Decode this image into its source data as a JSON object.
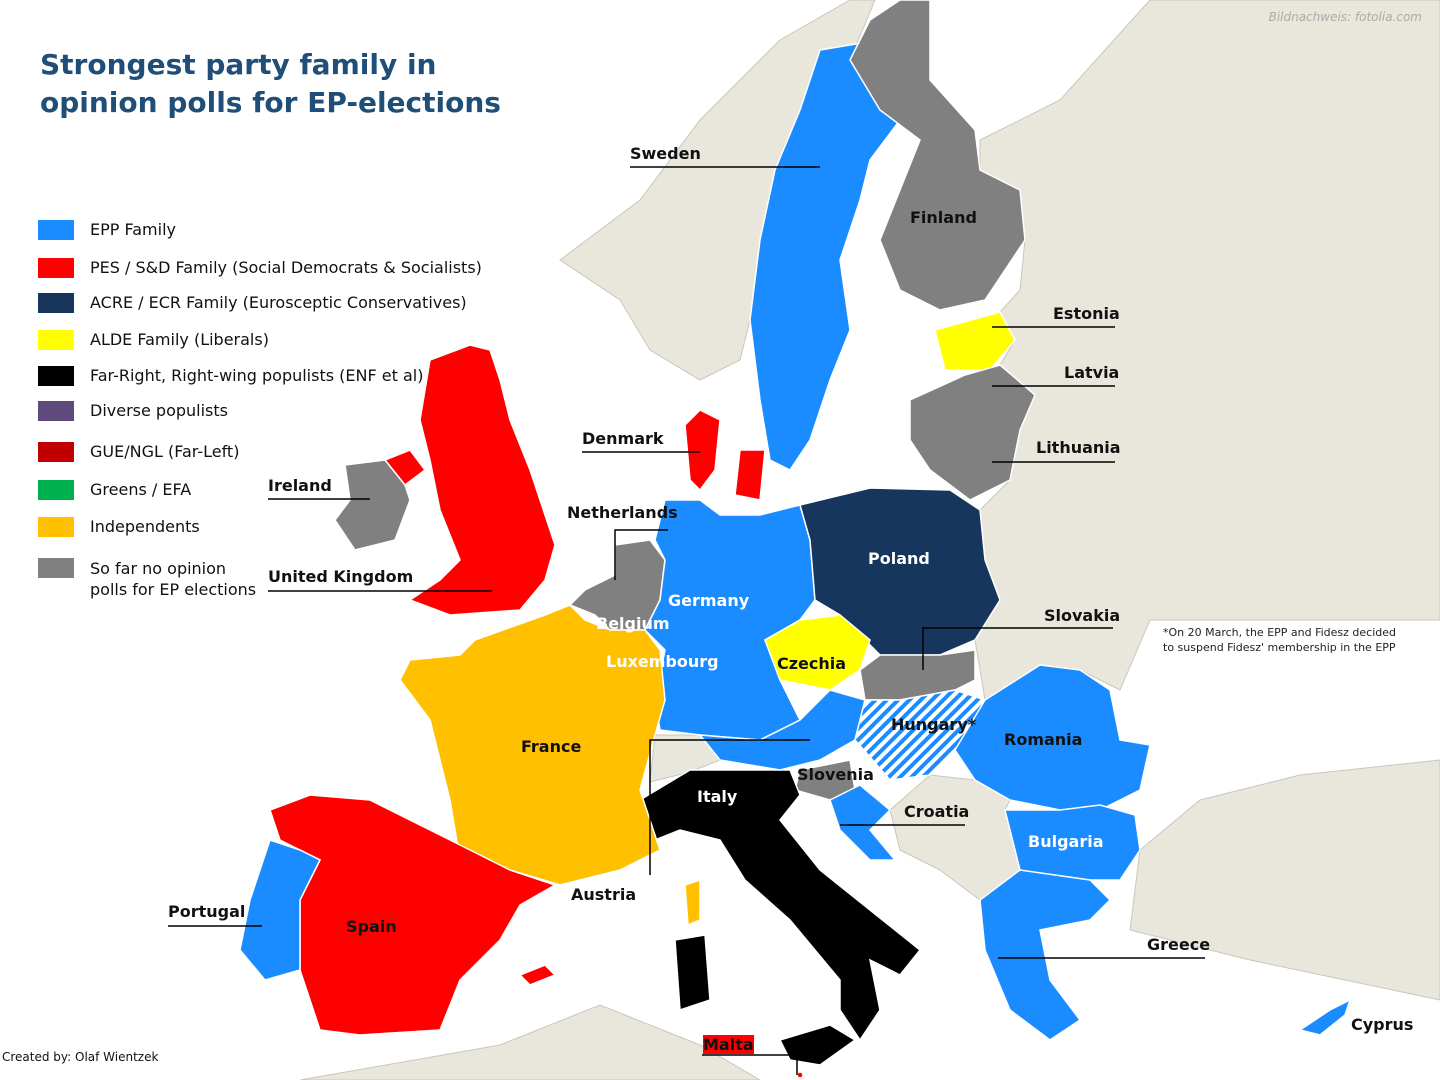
{
  "title_line1": "Strongest party family in",
  "title_line2": "opinion polls for EP-elections",
  "credit": "Bildnachweis: fotolia.com",
  "created_by": "Created by: Olaf Wientzek",
  "footnote_line1": "*On 20  March, the EPP and Fidesz decided",
  "footnote_line2": "to suspend Fidesz' membership in the EPP",
  "colors": {
    "epp": "#1a8cff",
    "pes": "#ff0000",
    "ecr": "#17365d",
    "alde": "#ffff00",
    "far_right": "#000000",
    "populists": "#604a7b",
    "gue": "#c00000",
    "greens": "#00b050",
    "independents": "#ffc000",
    "no_polls": "#808080",
    "non_eu": "#e9e7dc",
    "sea": "#ffffff"
  },
  "legend": [
    {
      "label": "EPP Family",
      "color": "#1a8cff"
    },
    {
      "label": "PES / S&D Family (Social Democrats & Socialists)",
      "color": "#ff0000"
    },
    {
      "label": "ACRE / ECR Family (Eurosceptic Conservatives)",
      "color": "#17365d"
    },
    {
      "label": "ALDE Family (Liberals)",
      "color": "#ffff00"
    },
    {
      "label": "Far-Right, Right-wing populists (ENF et al)",
      "color": "#000000"
    },
    {
      "label": "Diverse populists",
      "color": "#604a7b"
    },
    {
      "label": "GUE/NGL (Far-Left)",
      "color": "#c00000"
    },
    {
      "label": "Greens / EFA",
      "color": "#00b050"
    },
    {
      "label": "Independents",
      "color": "#ffc000"
    },
    {
      "label": "So far no opinion polls for EP elections",
      "color": "#808080"
    }
  ],
  "countries": {
    "sweden": "Sweden",
    "finland": "Finland",
    "estonia": "Estonia",
    "latvia": "Latvia",
    "lithuania": "Lithuania",
    "denmark": "Denmark",
    "ireland": "Ireland",
    "uk": "United Kingdom",
    "netherlands": "Netherlands",
    "belgium": "Belgium",
    "luxembourg": "Luxembourg",
    "germany": "Germany",
    "poland": "Poland",
    "czechia": "Czechia",
    "slovakia": "Slovakia",
    "hungary": "Hungary*",
    "romania": "Romania",
    "austria": "Austria",
    "slovenia": "Slovenia",
    "croatia": "Croatia",
    "bulgaria": "Bulgaria",
    "greece": "Greece",
    "cyprus": "Cyprus",
    "italy": "Italy",
    "malta": "Malta",
    "france": "France",
    "spain": "Spain",
    "portugal": "Portugal"
  }
}
